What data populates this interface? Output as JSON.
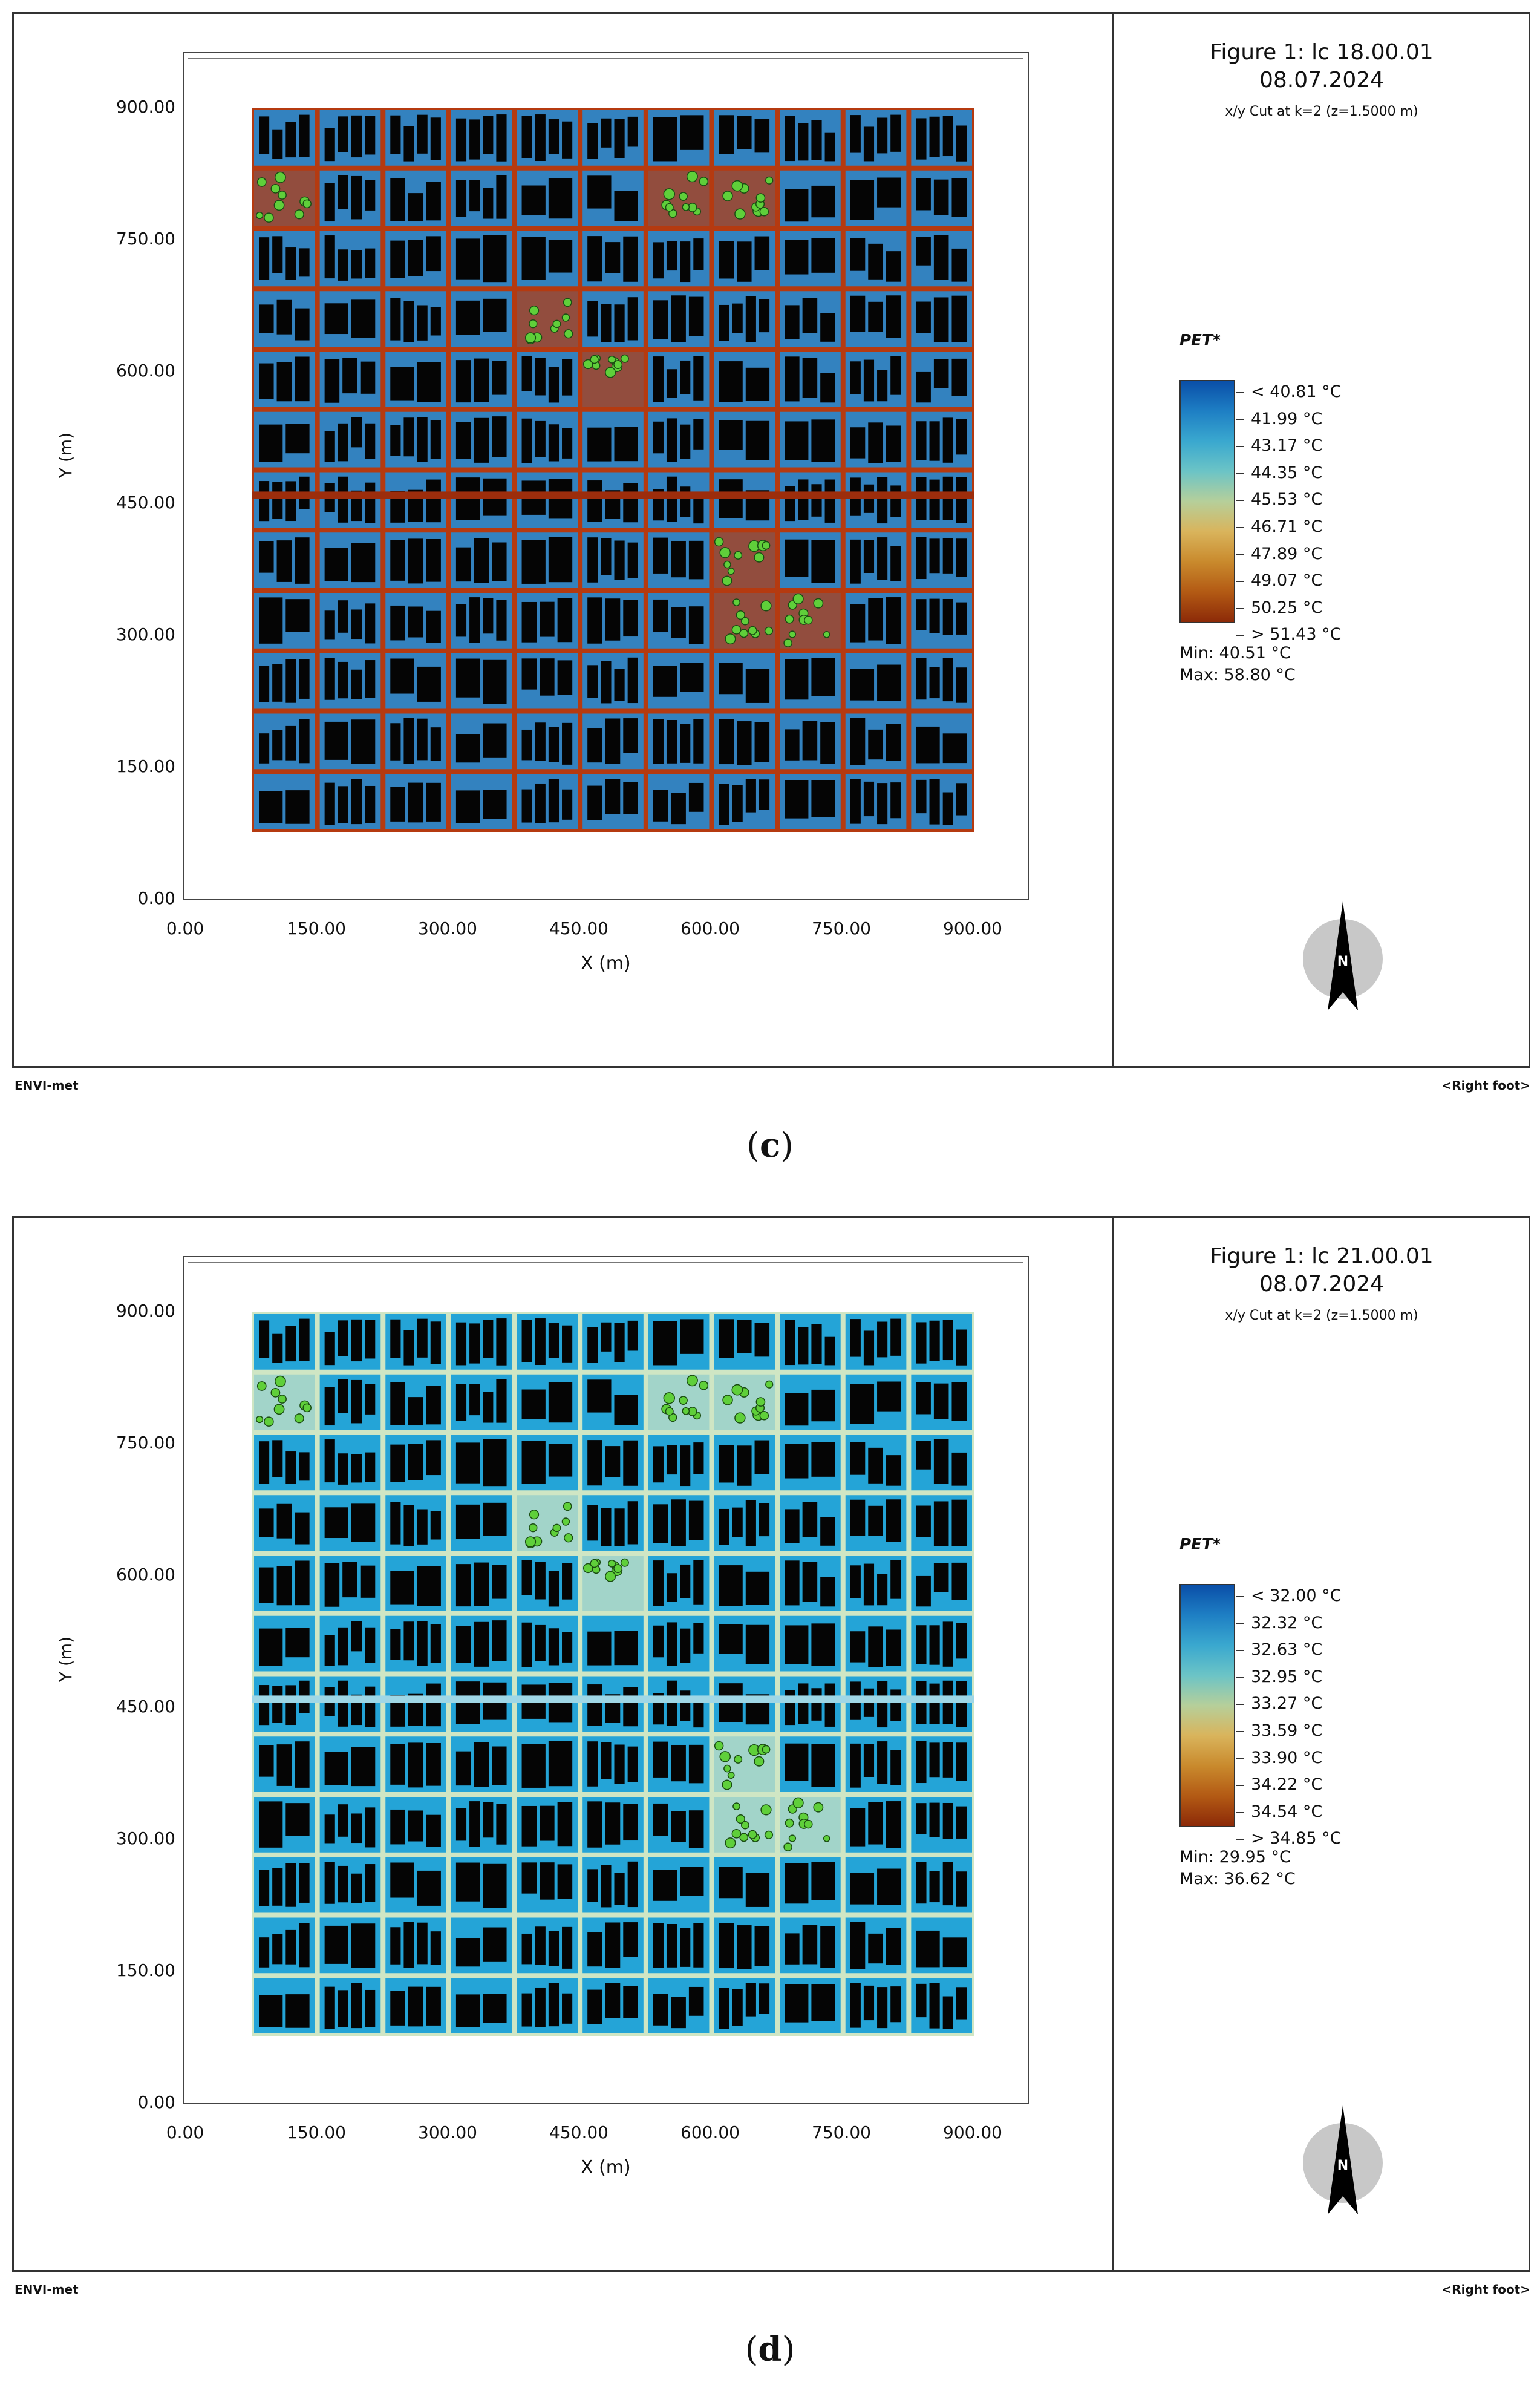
{
  "panels": [
    {
      "caption_letter": "c",
      "figure_title": "Figure 1: lc 18.00.01",
      "date": "08.07.2024",
      "cut_label": "x/y Cut at k=2 (z=1.5000 m)",
      "legend_title": "PET*",
      "legend_labels": [
        "< 40.81 °C",
        "41.99  °C",
        "43.17  °C",
        "44.35  °C",
        "45.53  °C",
        "46.71  °C",
        "47.89  °C",
        "49.07  °C",
        "50.25  °C",
        "> 51.43 °C"
      ],
      "min_label": "Min: 40.51 °C",
      "max_label": "Max: 58.80 °C",
      "ground_color": "#b53a10",
      "street_color": "#2c86c9",
      "edge_color": "#9c2d0c"
    },
    {
      "caption_letter": "d",
      "figure_title": "Figure 1: lc 21.00.01",
      "date": "08.07.2024",
      "cut_label": "x/y Cut at k=2 (z=1.5000 m)",
      "legend_title": "PET*",
      "legend_labels": [
        "< 32.00 °C",
        "32.32  °C",
        "32.63  °C",
        "32.95  °C",
        "33.27  °C",
        "33.59  °C",
        "33.90  °C",
        "34.22  °C",
        "34.54  °C",
        "> 34.85 °C"
      ],
      "min_label": "Min: 29.95 °C",
      "max_label": "Max: 36.62 °C",
      "ground_color": "#cfe6c4",
      "street_color": "#1aa0d8",
      "edge_color": "#9fd7e6"
    }
  ],
  "axes": {
    "x_label": "X (m)",
    "y_label": "Y (m)",
    "x_ticks": [
      "0.00",
      "150.00",
      "300.00",
      "450.00",
      "600.00",
      "750.00",
      "900.00"
    ],
    "y_ticks": [
      "900.00",
      "750.00",
      "600.00",
      "450.00",
      "300.00",
      "150.00",
      "0.00"
    ]
  },
  "footer": {
    "left": "ENVI-met",
    "right": "<Right foot>"
  },
  "compass_letter": "N",
  "legend_gradient": [
    "#0a4fa8",
    "#1e7fc4",
    "#3aa8cf",
    "#6cc4c6",
    "#b6cf9a",
    "#d9b45c",
    "#c98a2d",
    "#b35a14",
    "#8c2a08"
  ]
}
